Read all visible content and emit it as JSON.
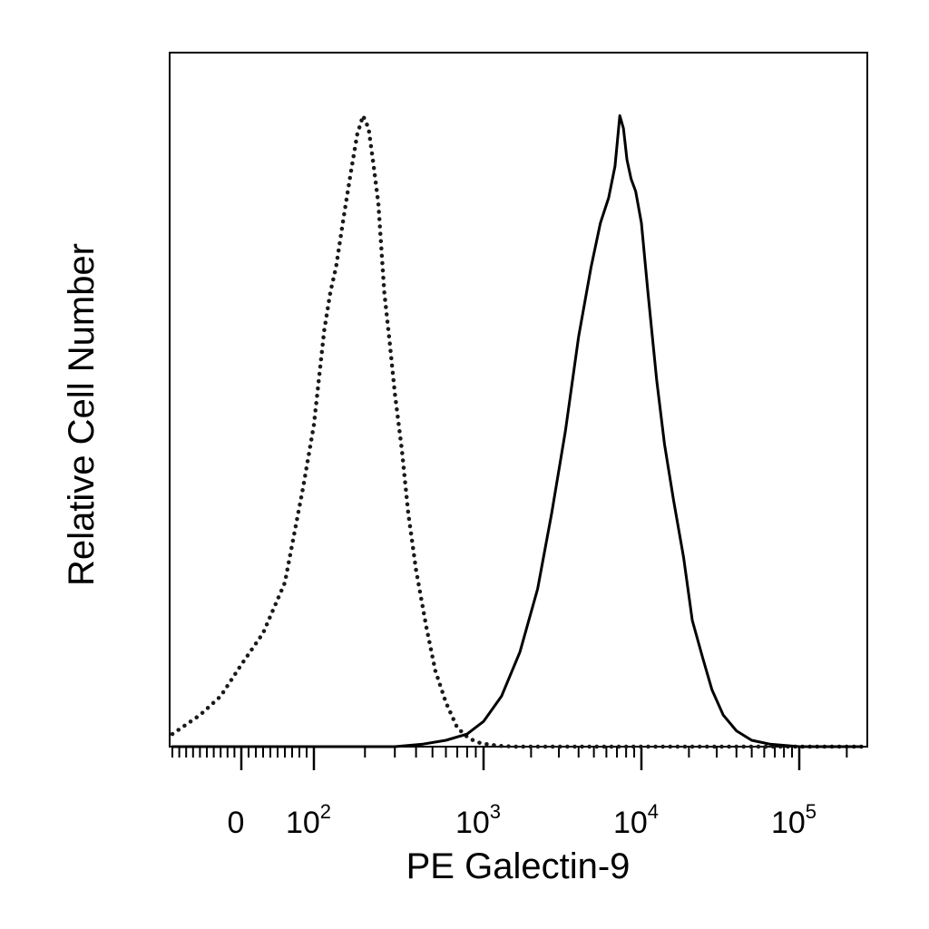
{
  "chart_data": {
    "type": "line",
    "xlabel": "PE Galectin-9",
    "ylabel": "Relative Cell Number",
    "x_scale": "biexponential",
    "x_ticks": [
      {
        "value": 0,
        "base": "0",
        "exp": ""
      },
      {
        "value": 100,
        "base": "10",
        "exp": "2"
      },
      {
        "value": 1000,
        "base": "10",
        "exp": "3"
      },
      {
        "value": 10000,
        "base": "10",
        "exp": "4"
      },
      {
        "value": 100000,
        "base": "10",
        "exp": "5"
      }
    ],
    "xlim": [
      -200,
      250000
    ],
    "ylim": [
      0,
      1.1
    ],
    "grid": false,
    "legend": "none",
    "series": [
      {
        "style": "dotted",
        "color": "#1a1a1a",
        "x": [
          -200,
          -120,
          -60,
          0,
          30,
          60,
          85,
          100,
          115,
          125,
          135,
          150,
          165,
          180,
          195,
          210,
          225,
          240,
          260,
          280,
          300,
          330,
          360,
          400,
          460,
          520,
          600,
          700,
          820,
          950,
          1100,
          1300,
          1600,
          2500,
          5000,
          10000,
          30000,
          100000,
          250000
        ],
        "y": [
          0.02,
          0.05,
          0.08,
          0.13,
          0.18,
          0.26,
          0.41,
          0.51,
          0.66,
          0.72,
          0.76,
          0.84,
          0.91,
          0.97,
          1.0,
          0.98,
          0.92,
          0.86,
          0.72,
          0.64,
          0.56,
          0.47,
          0.37,
          0.28,
          0.19,
          0.12,
          0.07,
          0.03,
          0.013,
          0.006,
          0.003,
          0.001,
          0.0,
          0.0,
          0.0,
          0.0,
          0.0,
          0.0,
          0.0
        ]
      },
      {
        "style": "solid",
        "color": "#000000",
        "x": [
          -200,
          300,
          440,
          600,
          800,
          1000,
          1300,
          1700,
          2200,
          2700,
          3300,
          4000,
          4800,
          5500,
          6200,
          6800,
          7300,
          7700,
          8100,
          8600,
          9200,
          10000,
          11000,
          12500,
          14000,
          16000,
          18500,
          21000,
          24500,
          28000,
          33000,
          40000,
          50000,
          65000,
          100000,
          250000
        ],
        "y": [
          0.0,
          0.0,
          0.004,
          0.01,
          0.02,
          0.04,
          0.08,
          0.15,
          0.25,
          0.37,
          0.5,
          0.65,
          0.76,
          0.83,
          0.87,
          0.92,
          1.0,
          0.98,
          0.93,
          0.9,
          0.88,
          0.83,
          0.72,
          0.58,
          0.48,
          0.39,
          0.3,
          0.2,
          0.14,
          0.09,
          0.05,
          0.025,
          0.01,
          0.004,
          0.0,
          0.0
        ]
      }
    ]
  }
}
